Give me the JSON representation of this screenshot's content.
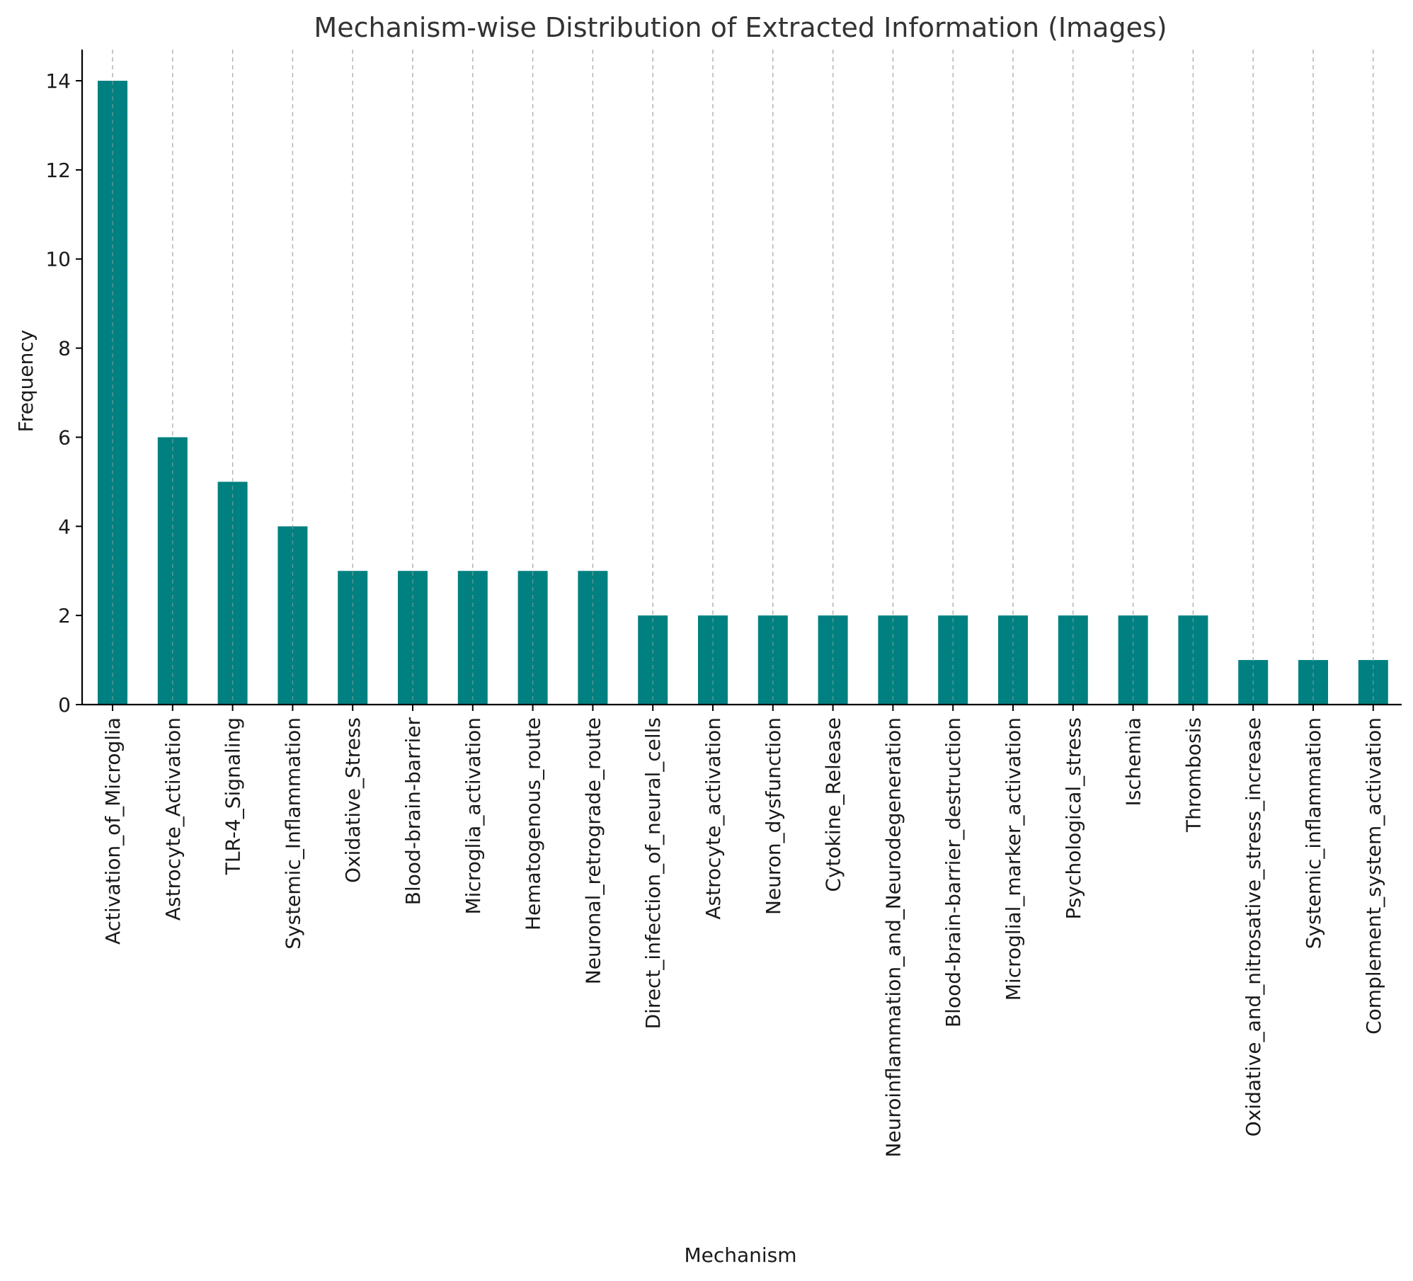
{
  "chart_data": {
    "type": "bar",
    "title": "Mechanism-wise Distribution of Extracted Information (Images)",
    "xlabel": "Mechanism",
    "ylabel": "Frequency",
    "categories": [
      "Activation_of_Microglia",
      "Astrocyte_Activation",
      "TLR-4_Signaling",
      "Systemic_Inflammation",
      "Oxidative_Stress",
      "Blood-brain-barrier",
      "Microglia_activation",
      "Hematogenous_route",
      "Neuronal_retrograde_route",
      "Direct_infection_of_neural_cells",
      "Astrocyte_activation",
      "Neuron_dysfunction",
      "Cytokine_Release",
      "Neuroinflammation_and_Neurodegeneration",
      "Blood-brain-barrier_destruction",
      "Microglial_marker_activation",
      "Psychological_stress",
      "Ischemia",
      "Thrombosis",
      "Oxidative_and_nitrosative_stress_increase",
      "Systemic_inflammation",
      "Complement_system_activation"
    ],
    "values": [
      14,
      6,
      5,
      4,
      3,
      3,
      3,
      3,
      3,
      2,
      2,
      2,
      2,
      2,
      2,
      2,
      2,
      2,
      2,
      1,
      1,
      1
    ],
    "yticks": [
      "0",
      "2",
      "4",
      "6",
      "8",
      "10",
      "12",
      "14"
    ],
    "ylim": [
      0,
      14.7
    ],
    "grid": "vertical dashed lines at category positions",
    "legend": "none",
    "colors": {
      "bar": "#008080",
      "grid": "#b0b0b0",
      "axis": "#000000",
      "title": "#333333"
    }
  }
}
